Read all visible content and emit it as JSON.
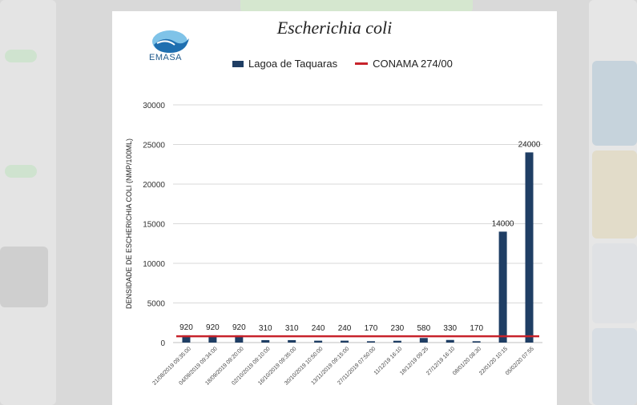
{
  "page": {
    "logo_text": "EMASA"
  },
  "chart_data": {
    "type": "bar",
    "title": "Escherichia coli",
    "ylabel": "DENSIDADE DE ESCHERICHIA COLI (NMP/100ML)",
    "xlabel": "",
    "ylim": [
      0,
      30000
    ],
    "yticks": [
      0,
      5000,
      10000,
      15000,
      20000,
      25000,
      30000
    ],
    "grid": true,
    "legend_position": "top",
    "categories": [
      "21/08/2019 09:35:00",
      "04/09/2019 09:34:00",
      "18/09/2019 09:20:00",
      "02/10/2019 09:10:00",
      "16/10/2019 09:35:00",
      "30/10/2019 10:50:00",
      "13/11/2019 09:15:00",
      "27/11/2019 07:50:00",
      "11/12/19 16:10",
      "18/12/19 09:25",
      "27/12/19 16:10",
      "08/01/20 08:30",
      "22/01/20 10:15",
      "05/02/20 07:55"
    ],
    "series": [
      {
        "name": "Lagoa de Taquaras",
        "color": "#1f3e64",
        "values": [
          920,
          920,
          920,
          310,
          310,
          240,
          240,
          170,
          230,
          580,
          330,
          170,
          14000,
          24000
        ]
      }
    ],
    "reference_line": {
      "name": "CONAMA 274/00",
      "color": "#c7232b",
      "value": 800
    }
  }
}
